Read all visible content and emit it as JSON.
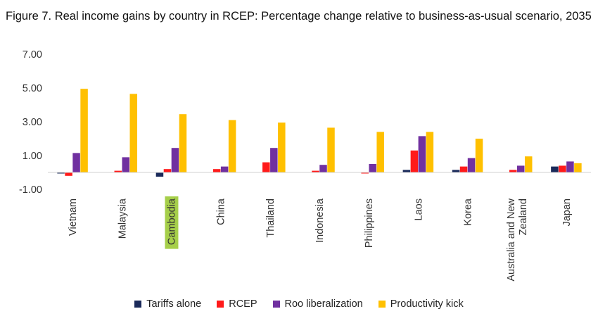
{
  "chart_data": {
    "type": "bar",
    "title": "Figure 7. Real income gains by country in RCEP: Percentage change relative to business-as-usual scenario, 2035",
    "xlabel": "",
    "ylabel": "",
    "ylim": [
      -1.0,
      7.0
    ],
    "yticks": [
      "7.00",
      "5.00",
      "3.00",
      "1.00",
      "-1.00"
    ],
    "ytick_values": [
      7,
      5,
      3,
      1,
      -1
    ],
    "grid": false,
    "legend_position": "bottom",
    "highlighted_category": "Cambodia",
    "highlight_color": "#a6cf4a",
    "categories": [
      "Vietnam",
      "Malaysia",
      "Cambodia",
      "China",
      "Thailand",
      "Indonesia",
      "Philippines",
      "Laos",
      "Korea",
      "Australia and New Zealand",
      "Japan"
    ],
    "category_lines": [
      [
        "Vietnam"
      ],
      [
        "Malaysia"
      ],
      [
        "Cambodia"
      ],
      [
        "China"
      ],
      [
        "Thailand"
      ],
      [
        "Indonesia"
      ],
      [
        "Philippines"
      ],
      [
        "Laos"
      ],
      [
        "Korea"
      ],
      [
        "Australia and New",
        "Zealand"
      ],
      [
        "Japan"
      ]
    ],
    "series": [
      {
        "name": "Tariffs alone",
        "color": "#1a2a5a",
        "values": [
          -0.05,
          0.0,
          -0.25,
          0.0,
          0.0,
          0.0,
          0.0,
          0.15,
          0.15,
          0.0,
          0.35
        ]
      },
      {
        "name": "RCEP",
        "color": "#ff1a1a",
        "values": [
          -0.2,
          0.1,
          0.2,
          0.2,
          0.6,
          0.1,
          -0.05,
          1.3,
          0.35,
          0.15,
          0.4
        ]
      },
      {
        "name": "Roo liberalization",
        "color": "#7030a0",
        "values": [
          1.15,
          0.9,
          1.45,
          0.35,
          1.45,
          0.45,
          0.5,
          2.15,
          0.85,
          0.4,
          0.65
        ]
      },
      {
        "name": "Productivity kick",
        "color": "#ffc000",
        "values": [
          4.95,
          4.65,
          3.45,
          3.1,
          2.95,
          2.65,
          2.4,
          2.4,
          2.0,
          0.95,
          0.55
        ]
      }
    ]
  }
}
